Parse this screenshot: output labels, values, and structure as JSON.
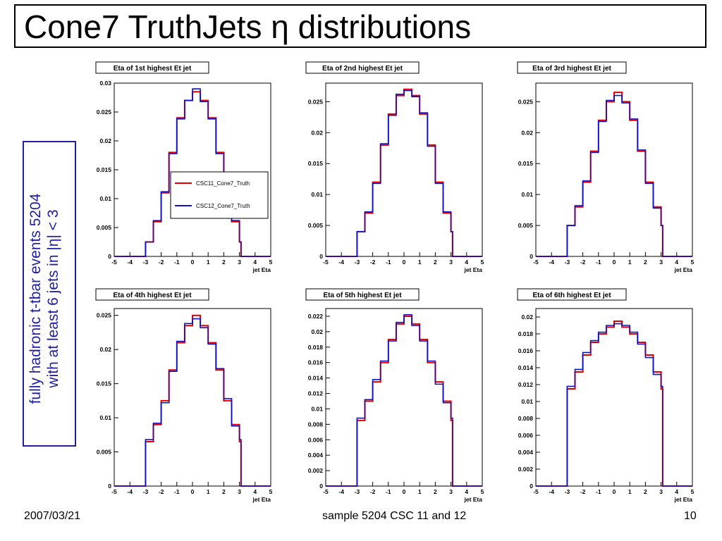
{
  "slide": {
    "title": "Cone7 TruthJets η distributions",
    "side_note_line1": "fully hadronic t-tbar events 5204",
    "side_note_line2": "with at least 6 jets in |η| < 3",
    "footer_date": "2007/03/21",
    "footer_center": "sample 5204 CSC 11 and 12",
    "footer_page": "10"
  },
  "colors": {
    "series1": "#e00000",
    "series2": "#1010c0",
    "side_text": "#1f1fa0"
  },
  "legend": {
    "entries": [
      "CSC11_Cone7_Truth",
      "CSC12_Cone7_Truth"
    ],
    "placement": "inside first panel, right of center"
  },
  "chart_data": [
    {
      "type": "line",
      "title": "Eta of 1st highest Et jet",
      "xlabel": "jet Eta",
      "xlim": [
        -5,
        5
      ],
      "ylim": [
        0,
        0.03
      ],
      "yticks": [
        0,
        0.005,
        0.01,
        0.015,
        0.02,
        0.025,
        0.03
      ],
      "ytick_labels": [
        "0",
        "0.005",
        "0.01",
        "0.015",
        "0.02",
        "0.025",
        "0.03"
      ],
      "xticks": [
        -5,
        -4,
        -3,
        -2,
        -1,
        0,
        1,
        2,
        3,
        4,
        5
      ],
      "x": [
        -3,
        -2.5,
        -2,
        -1.5,
        -1,
        -0.5,
        0,
        0.5,
        1,
        1.5,
        2,
        2.5,
        3
      ],
      "series": [
        {
          "name": "CSC11_Cone7_Truth",
          "values": [
            0.0025,
            0.006,
            0.011,
            0.018,
            0.024,
            0.027,
            0.0285,
            0.027,
            0.024,
            0.018,
            0.011,
            0.006,
            0.0025
          ]
        },
        {
          "name": "CSC12_Cone7_Truth",
          "values": [
            0.0025,
            0.0062,
            0.0112,
            0.0178,
            0.0238,
            0.027,
            0.029,
            0.0268,
            0.0238,
            0.0178,
            0.0108,
            0.0062,
            0.0025
          ]
        }
      ]
    },
    {
      "type": "line",
      "title": "Eta of 2nd highest Et jet",
      "xlabel": "jet Eta",
      "xlim": [
        -5,
        5
      ],
      "ylim": [
        0,
        0.028
      ],
      "yticks": [
        0,
        0.005,
        0.01,
        0.015,
        0.02,
        0.025
      ],
      "ytick_labels": [
        "0",
        "0.005",
        "0.01",
        "0.015",
        "0.02",
        "0.025"
      ],
      "xticks": [
        -5,
        -4,
        -3,
        -2,
        -1,
        0,
        1,
        2,
        3,
        4,
        5
      ],
      "x": [
        -3,
        -2.5,
        -2,
        -1.5,
        -1,
        -0.5,
        0,
        0.5,
        1,
        1.5,
        2,
        2.5,
        3
      ],
      "series": [
        {
          "name": "CSC11_Cone7_Truth",
          "values": [
            0.004,
            0.007,
            0.012,
            0.018,
            0.023,
            0.026,
            0.027,
            0.026,
            0.023,
            0.018,
            0.012,
            0.007,
            0.004
          ]
        },
        {
          "name": "CSC12_Cone7_Truth",
          "values": [
            0.004,
            0.0072,
            0.0118,
            0.0182,
            0.0228,
            0.0262,
            0.0268,
            0.0258,
            0.0232,
            0.0178,
            0.0118,
            0.0072,
            0.004
          ]
        }
      ]
    },
    {
      "type": "line",
      "title": "Eta of 3rd highest Et jet",
      "xlabel": "jet Eta",
      "xlim": [
        -5,
        5
      ],
      "ylim": [
        0,
        0.028
      ],
      "yticks": [
        0,
        0.005,
        0.01,
        0.015,
        0.02,
        0.025
      ],
      "ytick_labels": [
        "0",
        "0.005",
        "0.01",
        "0.015",
        "0.02",
        "0.025"
      ],
      "xticks": [
        -5,
        -4,
        -3,
        -2,
        -1,
        0,
        1,
        2,
        3,
        4,
        5
      ],
      "x": [
        -3,
        -2.5,
        -2,
        -1.5,
        -1,
        -0.5,
        0,
        0.5,
        1,
        1.5,
        2,
        2.5,
        3
      ],
      "series": [
        {
          "name": "CSC11_Cone7_Truth",
          "values": [
            0.005,
            0.008,
            0.012,
            0.017,
            0.022,
            0.025,
            0.0265,
            0.025,
            0.022,
            0.017,
            0.012,
            0.008,
            0.005
          ]
        },
        {
          "name": "CSC12_Cone7_Truth",
          "values": [
            0.005,
            0.0082,
            0.0122,
            0.0168,
            0.0218,
            0.0252,
            0.026,
            0.0248,
            0.0222,
            0.0172,
            0.0118,
            0.0078,
            0.005
          ]
        }
      ]
    },
    {
      "type": "line",
      "title": "Eta of 4th highest Et jet",
      "xlabel": "jet Eta",
      "xlim": [
        -5,
        5
      ],
      "ylim": [
        0,
        0.026
      ],
      "yticks": [
        0,
        0.005,
        0.01,
        0.015,
        0.02,
        0.025
      ],
      "ytick_labels": [
        "0",
        "0.005",
        "0.01",
        "0.015",
        "0.02",
        "0.025"
      ],
      "xticks": [
        -5,
        -4,
        -3,
        -2,
        -1,
        0,
        1,
        2,
        3,
        4,
        5
      ],
      "x": [
        -3,
        -2.5,
        -2,
        -1.5,
        -1,
        -0.5,
        0,
        0.5,
        1,
        1.5,
        2,
        2.5,
        3
      ],
      "series": [
        {
          "name": "CSC11_Cone7_Truth",
          "values": [
            0.0065,
            0.009,
            0.0125,
            0.017,
            0.021,
            0.0235,
            0.025,
            0.0235,
            0.021,
            0.017,
            0.0125,
            0.009,
            0.0065
          ]
        },
        {
          "name": "CSC12_Cone7_Truth",
          "values": [
            0.0068,
            0.0092,
            0.0122,
            0.0168,
            0.0212,
            0.0238,
            0.0245,
            0.0232,
            0.0208,
            0.0172,
            0.0128,
            0.0088,
            0.0068
          ]
        }
      ]
    },
    {
      "type": "line",
      "title": "Eta of 5th highest Et jet",
      "xlabel": "jet Eta",
      "xlim": [
        -5,
        5
      ],
      "ylim": [
        0,
        0.023
      ],
      "yticks": [
        0,
        0.002,
        0.004,
        0.006,
        0.008,
        0.01,
        0.012,
        0.014,
        0.016,
        0.018,
        0.02,
        0.022
      ],
      "ytick_labels": [
        "0",
        "0.002",
        "0.004",
        "0.006",
        "0.008",
        "0.01",
        "0.012",
        "0.014",
        "0.016",
        "0.018",
        "0.02",
        "0.022"
      ],
      "xticks": [
        -5,
        -4,
        -3,
        -2,
        -1,
        0,
        1,
        2,
        3,
        4,
        5
      ],
      "x": [
        -3,
        -2.5,
        -2,
        -1.5,
        -1,
        -0.5,
        0,
        0.5,
        1,
        1.5,
        2,
        2.5,
        3
      ],
      "series": [
        {
          "name": "CSC11_Cone7_Truth",
          "values": [
            0.0085,
            0.011,
            0.0135,
            0.016,
            0.019,
            0.021,
            0.022,
            0.021,
            0.019,
            0.016,
            0.0135,
            0.011,
            0.0085
          ]
        },
        {
          "name": "CSC12_Cone7_Truth",
          "values": [
            0.0088,
            0.0112,
            0.0138,
            0.0162,
            0.0188,
            0.0212,
            0.0222,
            0.0208,
            0.0188,
            0.0162,
            0.0132,
            0.0108,
            0.0088
          ]
        }
      ]
    },
    {
      "type": "line",
      "title": "Eta of 6th highest Et jet",
      "xlabel": "jet Eta",
      "xlim": [
        -5,
        5
      ],
      "ylim": [
        0,
        0.021
      ],
      "yticks": [
        0,
        0.002,
        0.004,
        0.006,
        0.008,
        0.01,
        0.012,
        0.014,
        0.016,
        0.018,
        0.02
      ],
      "ytick_labels": [
        "0",
        "0.002",
        "0.004",
        "0.006",
        "0.008",
        "0.01",
        "0.012",
        "0.014",
        "0.016",
        "0.018",
        "0.02"
      ],
      "xticks": [
        -5,
        -4,
        -3,
        -2,
        -1,
        0,
        1,
        2,
        3,
        4,
        5
      ],
      "x": [
        -3,
        -2.5,
        -2,
        -1.5,
        -1,
        -0.5,
        0,
        0.5,
        1,
        1.5,
        2,
        2.5,
        3
      ],
      "series": [
        {
          "name": "CSC11_Cone7_Truth",
          "values": [
            0.0115,
            0.0135,
            0.0155,
            0.017,
            0.018,
            0.0188,
            0.0195,
            0.0188,
            0.018,
            0.017,
            0.0155,
            0.0135,
            0.0115
          ]
        },
        {
          "name": "CSC12_Cone7_Truth",
          "values": [
            0.0118,
            0.0138,
            0.0158,
            0.0172,
            0.0182,
            0.019,
            0.0192,
            0.019,
            0.0182,
            0.0168,
            0.0152,
            0.0132,
            0.0118
          ]
        }
      ]
    }
  ]
}
